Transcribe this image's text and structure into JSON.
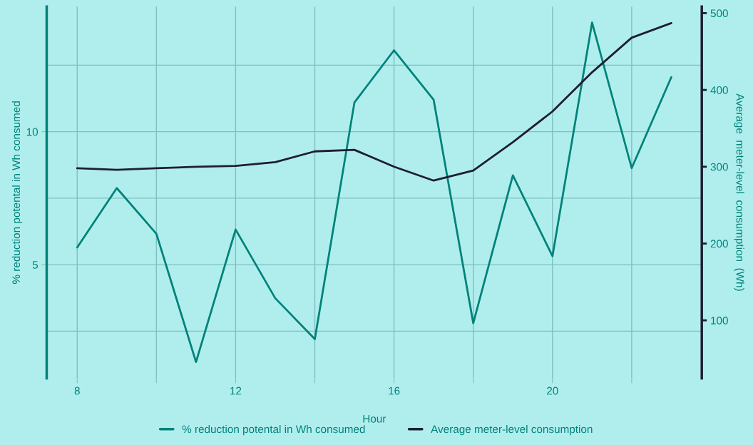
{
  "chart_data": {
    "type": "line",
    "xlabel": "Hour",
    "ylabel": "% reduction potental in Wh consumed",
    "y2label": "Average  meter-level  consumption  (Wh)",
    "x": [
      8,
      9,
      10,
      11,
      12,
      13,
      14,
      15,
      16,
      17,
      18,
      19,
      20,
      21,
      22,
      23
    ],
    "series": [
      {
        "name": "% reduction potental in Wh consumed",
        "color": "#00827a",
        "values": [
          5.65,
          7.88,
          6.16,
          1.34,
          6.32,
          3.74,
          2.2,
          11.1,
          13.06,
          11.2,
          2.8,
          8.36,
          5.32,
          14.1,
          8.63,
          12.05
        ]
      },
      {
        "name": "Average meter-level consumption",
        "color": "#1e1e30",
        "axis": "y2",
        "values": [
          298,
          296,
          298,
          300,
          301,
          306,
          320,
          322,
          300,
          282,
          295,
          332,
          372,
          423,
          468,
          487
        ]
      }
    ],
    "xlim": [
      7.23,
      23.77
    ],
    "xticks": [
      8,
      {
        "value": 10,
        "label": null
      },
      12,
      {
        "value": 14,
        "label": null
      },
      16,
      {
        "value": 18,
        "label": null
      },
      20,
      {
        "value": 22,
        "label": null
      }
    ],
    "ylim": [
      0.73,
      14.7
    ],
    "yticks": [
      {
        "value": 2.5,
        "label": null
      },
      5,
      {
        "value": 7.5,
        "label": null
      },
      10,
      {
        "value": 12.5,
        "label": null
      }
    ],
    "y2lim": [
      24.6,
      508.4
    ],
    "y2ticks": [
      100,
      200,
      300,
      400,
      500
    ],
    "grid": true,
    "legend": "bottom",
    "marker": "none",
    "line_style": "solid"
  }
}
